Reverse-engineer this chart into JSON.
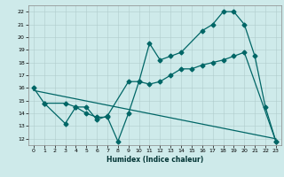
{
  "xlabel": "Humidex (Indice chaleur)",
  "ylabel": "",
  "xlim": [
    -0.5,
    23.5
  ],
  "ylim": [
    11.5,
    22.5
  ],
  "xticks": [
    0,
    1,
    2,
    3,
    4,
    5,
    6,
    7,
    8,
    9,
    10,
    11,
    12,
    13,
    14,
    15,
    16,
    17,
    18,
    19,
    20,
    21,
    22,
    23
  ],
  "yticks": [
    12,
    13,
    14,
    15,
    16,
    17,
    18,
    19,
    20,
    21,
    22
  ],
  "bg_color": "#ceeaea",
  "grid_color": "#b0cccc",
  "line_color": "#006666",
  "series1_x": [
    0,
    1,
    3,
    4,
    5,
    6,
    7,
    8,
    9,
    10,
    11,
    12,
    13,
    14,
    16,
    17,
    18,
    19,
    20,
    21,
    22,
    23
  ],
  "series1_y": [
    16.0,
    14.8,
    14.8,
    14.5,
    14.0,
    13.7,
    13.7,
    11.8,
    14.0,
    16.5,
    19.5,
    18.2,
    18.5,
    18.8,
    20.5,
    21.0,
    22.0,
    22.0,
    21.0,
    18.5,
    14.5,
    11.8
  ],
  "series2_x": [
    1,
    3,
    4,
    5,
    6,
    7,
    9,
    10,
    11,
    12,
    13,
    14,
    15,
    16,
    17,
    18,
    19,
    20,
    23
  ],
  "series2_y": [
    14.8,
    13.2,
    14.5,
    14.5,
    13.5,
    13.8,
    16.5,
    16.5,
    16.3,
    16.5,
    17.0,
    17.5,
    17.5,
    17.8,
    18.0,
    18.2,
    18.5,
    18.8,
    11.8
  ],
  "series3_x": [
    0,
    23
  ],
  "series3_y": [
    15.8,
    12.0
  ]
}
